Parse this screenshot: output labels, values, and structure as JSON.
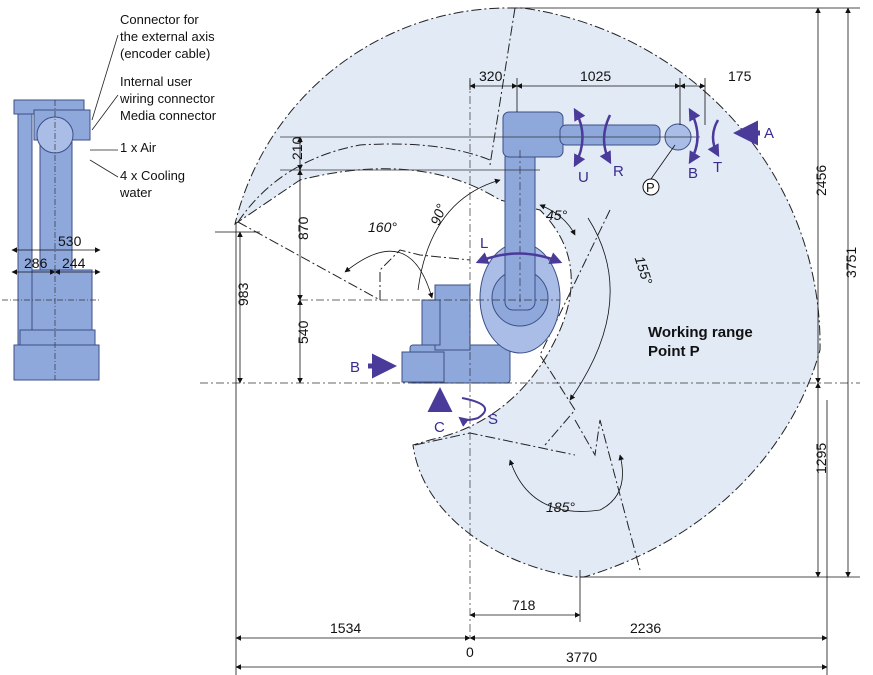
{
  "side_view": {
    "callouts": {
      "external_axis_connector": [
        "Connector for",
        "the external axis",
        "(encoder cable)"
      ],
      "user_wiring_connector": [
        "Internal user",
        "wiring connector",
        "Media connector"
      ],
      "air": "1 x Air",
      "cooling_water": [
        "4 x Cooling",
        "water"
      ]
    },
    "dims": {
      "width_total": "530",
      "width_rear": "286",
      "width_front": "244"
    }
  },
  "main_view": {
    "top_dims": {
      "d320": "320",
      "d1025": "1025",
      "d175": "175"
    },
    "left_dims": {
      "d210": "210",
      "d870": "870",
      "d540": "540",
      "d983": "983"
    },
    "right_dims": {
      "d2456": "2456",
      "d3751": "3751",
      "d1295": "1295"
    },
    "bottom_dims": {
      "d718": "718",
      "d1534": "1534",
      "d2236": "2236",
      "d0": "0",
      "d3770": "3770"
    },
    "angles": {
      "a160": "160°",
      "a90": "90°",
      "a45": "45°",
      "a155": "155°",
      "a185": "185°"
    },
    "axes": {
      "U": "U",
      "R": "R",
      "B": "B",
      "T": "T",
      "A": "A",
      "L": "L",
      "S": "S",
      "C": "C",
      "B_base": "B"
    },
    "point_label": "P",
    "working_range": [
      "Working range",
      "Point P"
    ]
  },
  "colors": {
    "robot_fill": "#8fa8dc",
    "range_fill": "#e2eaf6",
    "axis_purple": "#4a3a9a",
    "line": "#222222"
  }
}
